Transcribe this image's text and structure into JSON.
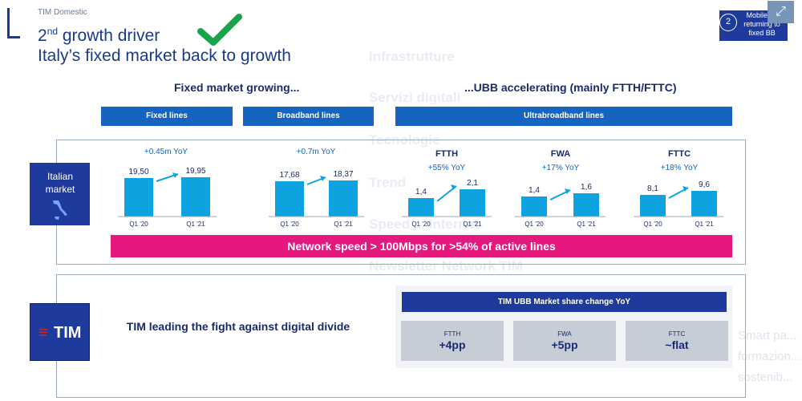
{
  "header": {
    "unit": "TIM Domestic",
    "title_line1_prefix": "2",
    "title_line1_sup": "nd",
    "title_line1_rest": " growth driver",
    "title_line2": "Italy’s fixed market back to growth"
  },
  "badge": {
    "number": "2",
    "text": "Mobile on returning to fixed BB"
  },
  "expand_icon": "expand-icon",
  "sections": {
    "fixed_heading": "Fixed market growing...",
    "ubb_heading": "...UBB accelerating (mainly FTTH/FTTC)"
  },
  "bars": {
    "fixed_lines": "Fixed lines",
    "broadband_lines": "Broadband lines",
    "ultrabroadband_lines": "Ultrabroadband lines"
  },
  "italian_market": {
    "label_line1": "Italian",
    "label_line2": "market"
  },
  "chart_data": [
    {
      "type": "bar",
      "title": "Fixed lines",
      "growth": "+0.45m YoY",
      "categories": [
        "Q1 '20",
        "Q1 '21"
      ],
      "values": [
        19.5,
        19.95
      ],
      "value_labels": [
        "19,50",
        "19,95"
      ]
    },
    {
      "type": "bar",
      "title": "Broadband lines",
      "growth": "+0.7m YoY",
      "categories": [
        "Q1 '20",
        "Q1 '21"
      ],
      "values": [
        17.68,
        18.37
      ],
      "value_labels": [
        "17,68",
        "18,37"
      ]
    },
    {
      "type": "bar",
      "title": "FTTH",
      "growth": "+55% YoY",
      "categories": [
        "Q1 '20",
        "Q1 '21"
      ],
      "values": [
        1.4,
        2.1
      ],
      "value_labels": [
        "1,4",
        "2,1"
      ]
    },
    {
      "type": "bar",
      "title": "FWA",
      "growth": "+17% YoY",
      "categories": [
        "Q1 '20",
        "Q1 '21"
      ],
      "values": [
        1.4,
        1.6
      ],
      "value_labels": [
        "1,4",
        "1,6"
      ]
    },
    {
      "type": "bar",
      "title": "FTTC",
      "growth": "+18% YoY",
      "categories": [
        "Q1 '20",
        "Q1 '21"
      ],
      "values": [
        8.1,
        9.6
      ],
      "value_labels": [
        "8,1",
        "9,6"
      ]
    }
  ],
  "network_speed": "Network speed > 100Mbps for >54% of active lines",
  "tim": {
    "logo_word": "TIM",
    "fight_text": "TIM leading the fight against digital divide"
  },
  "market_share": {
    "title": "TIM UBB Market share change YoY",
    "items": [
      {
        "label": "FTTH",
        "value": "+4pp"
      },
      {
        "label": "FWA",
        "value": "+5pp"
      },
      {
        "label": "FTTC",
        "value": "~flat"
      }
    ]
  },
  "background_ghost": {
    "items": [
      "Infrastrutture",
      "Servizi digitali",
      "Tecnologie",
      "Trend",
      "Speed ... Internet",
      "Newsletter Network TIM"
    ],
    "right_lines": [
      "Smart pa...",
      "formazion...",
      "sostenib..."
    ]
  },
  "colors": {
    "brand_blue": "#1e3a9c",
    "bar_blue": "#1565c0",
    "chart_bar": "#0ea3e0",
    "pink": "#e5187e",
    "tim_red": "#e02020",
    "check_green": "#16a34a"
  }
}
